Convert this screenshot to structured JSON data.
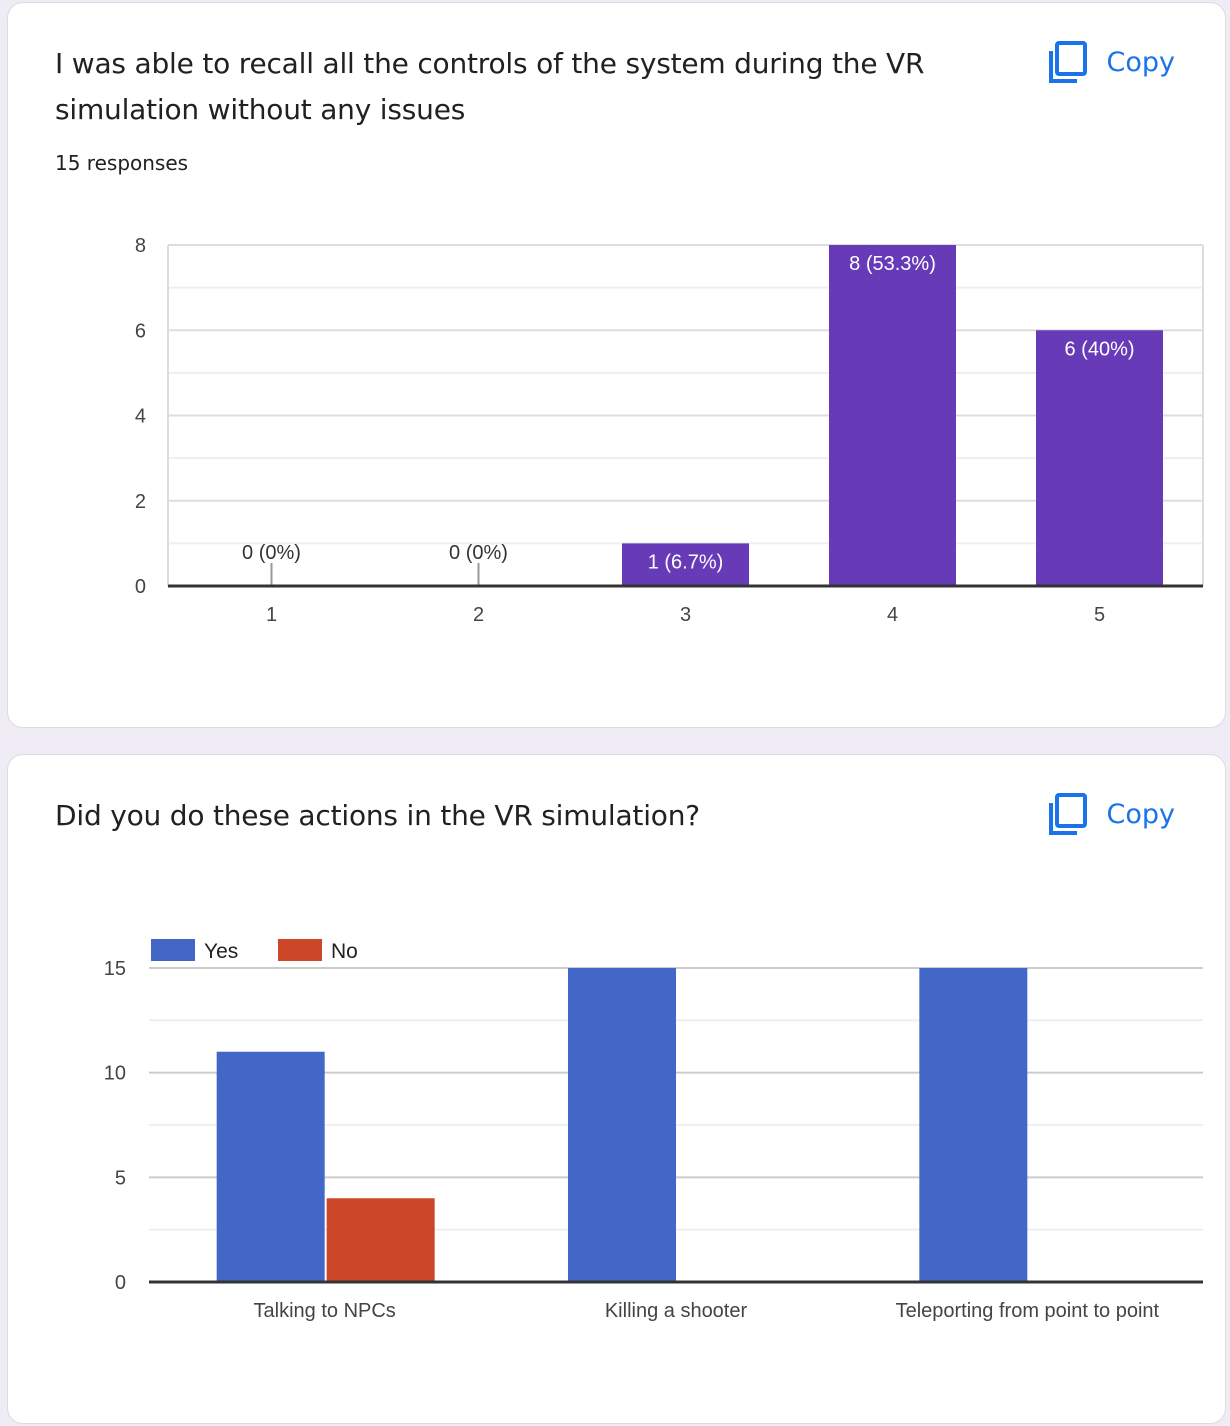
{
  "cards": [
    {
      "title": "I was able to recall all the controls of the system during the VR simulation without any issues",
      "responses": "15 responses",
      "copy_label": "Copy",
      "copy_icon": "copy-icon",
      "chart_data": {
        "type": "bar",
        "categories": [
          "1",
          "2",
          "3",
          "4",
          "5"
        ],
        "values": [
          0,
          0,
          1,
          8,
          6
        ],
        "data_labels": [
          "0 (0%)",
          "0 (0%)",
          "1 (6.7%)",
          "8 (53.3%)",
          "6 (40%)"
        ],
        "yticks": [
          "0",
          "2",
          "4",
          "6",
          "8"
        ],
        "ylim": [
          0,
          8
        ],
        "bar_color": "#673ab7",
        "grid": true
      }
    },
    {
      "title": "Did you do these actions in the VR simulation?",
      "copy_label": "Copy",
      "copy_icon": "copy-icon",
      "chart_data": {
        "type": "bar",
        "categories": [
          "Talking to NPCs",
          "Killing a shooter",
          "Teleporting from point to point"
        ],
        "series": [
          {
            "name": "Yes",
            "values": [
              11,
              15,
              15
            ],
            "color": "#4267c7"
          },
          {
            "name": "No",
            "values": [
              4,
              0,
              0
            ],
            "color": "#cc4728"
          }
        ],
        "yticks": [
          "0",
          "5",
          "10",
          "15"
        ],
        "ylim": [
          0,
          15
        ],
        "legend": "top-left",
        "grid": true
      }
    }
  ]
}
